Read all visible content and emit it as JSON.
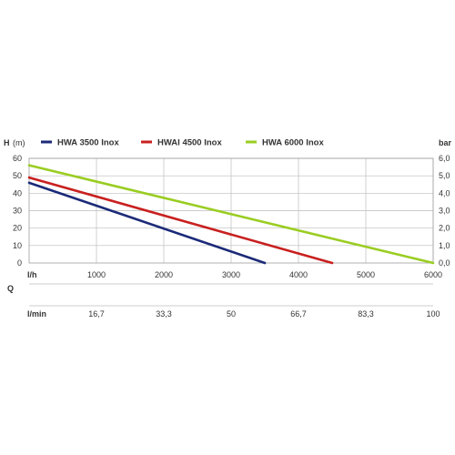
{
  "chart_data": {
    "type": "line",
    "y_left": {
      "label_h": "H",
      "label_unit": "(m)",
      "ticks": [
        0,
        10,
        20,
        30,
        40,
        50,
        60
      ],
      "ylim": [
        0,
        60
      ]
    },
    "y_right": {
      "label": "bar",
      "ticks": [
        "0,0",
        "1,0",
        "2,0",
        "3,0",
        "4,0",
        "5,0",
        "6,0"
      ]
    },
    "x_lh": {
      "unit": "l/h",
      "ticks": [
        "1000",
        "2000",
        "3000",
        "4000",
        "5000",
        "6000"
      ],
      "xlim": [
        0,
        6000
      ]
    },
    "q_label": "Q",
    "x_lmin": {
      "unit": "l/min",
      "ticks": [
        "16,7",
        "33,3",
        "50",
        "66,7",
        "83,3",
        "100"
      ]
    },
    "series": [
      {
        "name": "HWA 3500 Inox",
        "color": "#1b2a78",
        "x": [
          0,
          3500
        ],
        "y": [
          46,
          0
        ]
      },
      {
        "name": "HWAI 4500 Inox",
        "color": "#c8201f",
        "x": [
          0,
          4500
        ],
        "y": [
          49,
          0
        ]
      },
      {
        "name": "HWA 6000 Inox",
        "color": "#9acd22",
        "x": [
          0,
          6000
        ],
        "y": [
          56,
          0
        ]
      }
    ],
    "grid": true,
    "legend_position": "top"
  }
}
